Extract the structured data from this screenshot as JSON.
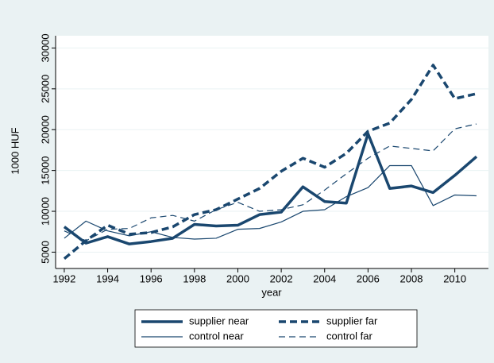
{
  "chart_data": {
    "type": "line",
    "y_label": "1000 HUF",
    "x_label": "year",
    "x": [
      1992,
      1993,
      1994,
      1995,
      1996,
      1997,
      1998,
      1999,
      2000,
      2001,
      2002,
      2003,
      2004,
      2005,
      2006,
      2007,
      2008,
      2009,
      2010,
      2011
    ],
    "series": [
      {
        "name": "supplier near",
        "color": "#1a476f",
        "width": 3.5,
        "dashed": false,
        "values": [
          8100,
          6100,
          6900,
          6000,
          6300,
          6700,
          8400,
          8200,
          8300,
          9600,
          9900,
          13000,
          11200,
          11000,
          19500,
          12800,
          13100,
          12300,
          14400,
          16700
        ]
      },
      {
        "name": "supplier far",
        "color": "#1a476f",
        "width": 3.5,
        "dashed": true,
        "values": [
          4200,
          6400,
          8300,
          7200,
          7400,
          8100,
          9600,
          10200,
          11500,
          12800,
          14900,
          16500,
          15400,
          17100,
          19800,
          20800,
          23700,
          27900,
          23800,
          24400
        ]
      },
      {
        "name": "control near",
        "color": "#1a476f",
        "width": 1.2,
        "dashed": false,
        "values": [
          6700,
          8800,
          7600,
          7000,
          7500,
          6800,
          6600,
          6700,
          7800,
          7900,
          8700,
          10000,
          10200,
          11800,
          12900,
          15600,
          15600,
          10700,
          12000,
          11900
        ]
      },
      {
        "name": "control far",
        "color": "#1a476f",
        "width": 1.2,
        "dashed": true,
        "values": [
          7600,
          6400,
          7800,
          7900,
          9200,
          9500,
          8800,
          10200,
          11100,
          10000,
          10200,
          10800,
          12600,
          14600,
          16500,
          18000,
          17700,
          17400,
          20100,
          20700
        ]
      }
    ],
    "xlim": [
      1991.6,
      2011.55
    ],
    "ylim": [
      3000,
      31500
    ],
    "xticks": [
      1992,
      1994,
      1996,
      1998,
      2000,
      2002,
      2004,
      2006,
      2008,
      2010
    ],
    "yticks": [
      5000,
      10000,
      15000,
      20000,
      25000,
      30000
    ],
    "grid": true,
    "legend": "bottom"
  }
}
